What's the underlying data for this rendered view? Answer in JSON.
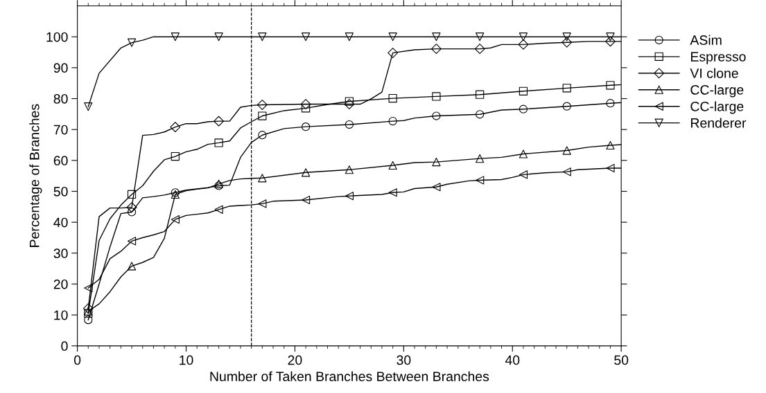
{
  "chart_data": {
    "type": "line",
    "xlabel": "Number of Taken Branches Between Branches",
    "ylabel": "Percentage of Branches",
    "xlim": [
      0,
      50
    ],
    "xticks": [
      0,
      10,
      20,
      30,
      40,
      50
    ],
    "ylim": [
      0,
      110
    ],
    "yticks": [
      0,
      10,
      20,
      30,
      40,
      50,
      60,
      70,
      80,
      90,
      100
    ],
    "grid": false,
    "legend": "top right",
    "line_style": "solid",
    "ref_lines": [
      {
        "axis": "x",
        "value": 16,
        "line_style": "dashed",
        "color": "#000000"
      }
    ],
    "series": [
      {
        "name": "ASim",
        "color": "#000000",
        "x": [
          1,
          2,
          3,
          4,
          5,
          6,
          7,
          8,
          9,
          10,
          11,
          12,
          13,
          14,
          15,
          16,
          17,
          19,
          21,
          25,
          29,
          30,
          31,
          33,
          37,
          39,
          41,
          45,
          49,
          50
        ],
        "values": [
          8.4,
          20,
          32,
          42.8,
          43.3,
          47.9,
          48.3,
          48.8,
          49.6,
          50.4,
          50.8,
          51.2,
          51.8,
          52,
          61,
          65.8,
          68.2,
          70.3,
          70.9,
          71.6,
          72.7,
          72.9,
          73.7,
          74.4,
          74.9,
          76.3,
          76.6,
          77.5,
          78.5,
          78.7
        ]
      },
      {
        "type": "scatter",
        "marker": "circle",
        "color": "#000000",
        "x": [
          1,
          5,
          9,
          13,
          17,
          21,
          25,
          29,
          33,
          37,
          41,
          45,
          49
        ],
        "values": [
          8.4,
          43.3,
          49.6,
          51.8,
          68.2,
          70.9,
          71.6,
          72.7,
          74.4,
          74.9,
          76.6,
          77.5,
          78.5
        ]
      },
      {
        "name": "Espresso",
        "color": "#000000",
        "x": [
          1,
          2,
          3,
          4,
          5,
          6,
          7,
          8,
          9,
          10,
          11,
          12,
          13,
          14,
          15,
          16,
          17,
          19,
          21,
          23,
          25,
          29,
          33,
          37,
          41,
          45,
          49,
          50
        ],
        "values": [
          10.5,
          34.1,
          41.1,
          45.5,
          49,
          51.8,
          56.5,
          60.2,
          61.3,
          62.8,
          63.6,
          65.2,
          65.7,
          66.3,
          70.5,
          72.5,
          74.4,
          76.1,
          76.9,
          78.1,
          79.1,
          80.1,
          80.7,
          81.3,
          82.4,
          83.4,
          84.3,
          84.5
        ]
      },
      {
        "type": "scatter",
        "marker": "square",
        "color": "#000000",
        "x": [
          1,
          5,
          9,
          13,
          17,
          21,
          25,
          29,
          33,
          37,
          41,
          45,
          49
        ],
        "values": [
          10.5,
          49,
          61.3,
          65.7,
          74.4,
          76.9,
          79.1,
          80.1,
          80.7,
          81.3,
          82.4,
          83.4,
          84.3
        ]
      },
      {
        "name": "VI clone",
        "color": "#000000",
        "x": [
          1,
          2,
          3,
          4,
          5,
          6,
          7,
          8,
          9,
          10,
          11,
          12,
          13,
          14,
          15,
          16,
          17,
          21,
          25,
          26,
          27,
          28,
          29,
          31,
          33,
          37,
          38,
          39,
          41,
          43,
          45,
          47,
          49,
          50
        ],
        "values": [
          12.1,
          41.8,
          44.6,
          44.6,
          44.8,
          68.1,
          68.4,
          69.2,
          70.8,
          71.9,
          71.9,
          72.5,
          72.7,
          72.7,
          77.2,
          77.8,
          78,
          78.2,
          78.2,
          78.2,
          79.9,
          82.1,
          94.8,
          95.8,
          96.1,
          96.1,
          96.4,
          97.5,
          97.5,
          97.9,
          98.2,
          98.5,
          98.5,
          98.5
        ]
      },
      {
        "type": "scatter",
        "marker": "diamond",
        "color": "#000000",
        "x": [
          1,
          5,
          9,
          13,
          17,
          21,
          25,
          29,
          33,
          37,
          41,
          45,
          49
        ],
        "values": [
          12.1,
          44.8,
          70.8,
          72.7,
          78,
          78.2,
          78.2,
          94.8,
          96.1,
          96.1,
          97.5,
          98.2,
          98.5
        ]
      },
      {
        "name": "CC-large",
        "color": "#000000",
        "x": [
          1,
          2,
          3,
          4,
          5,
          6,
          7,
          8,
          9,
          10,
          11,
          12,
          13,
          14,
          15,
          16,
          17,
          21,
          25,
          29,
          31,
          33,
          37,
          39,
          41,
          45,
          47,
          49,
          50
        ],
        "values": [
          11.2,
          13.6,
          17.5,
          22.3,
          25.8,
          27,
          28.6,
          34.8,
          49,
          50.2,
          50.7,
          51.1,
          52.4,
          53.5,
          54,
          54.2,
          54.3,
          56.1,
          57,
          58.4,
          59.3,
          59.5,
          60.6,
          61,
          62.1,
          63.2,
          64.3,
          64.9,
          65.1
        ]
      },
      {
        "type": "scatter",
        "marker": "triangle",
        "color": "#000000",
        "x": [
          1,
          5,
          9,
          13,
          17,
          21,
          25,
          29,
          33,
          37,
          41,
          45,
          49
        ],
        "values": [
          11.2,
          25.8,
          49,
          52.4,
          54.3,
          56.1,
          57,
          58.4,
          59.5,
          60.6,
          62.1,
          63.2,
          64.9
        ]
      },
      {
        "name": "CC-large",
        "color": "#000000",
        "x": [
          1,
          2,
          3,
          4,
          5,
          6,
          7,
          8,
          9,
          10,
          11,
          12,
          13,
          14,
          15,
          16,
          17,
          18,
          21,
          24,
          25,
          28,
          29,
          30,
          31,
          33,
          34,
          36,
          37,
          39,
          40,
          41,
          43,
          45,
          46,
          49,
          50
        ],
        "values": [
          18.7,
          21.5,
          28.2,
          30.6,
          33.9,
          35,
          35.9,
          37,
          40.9,
          42.2,
          42.6,
          43,
          44.1,
          45.2,
          45.4,
          45.6,
          46,
          46.8,
          47.2,
          48.3,
          48.5,
          49,
          49.6,
          49.8,
          50.9,
          51.4,
          52.3,
          53.4,
          53.6,
          53.8,
          54.5,
          55.4,
          56,
          56.3,
          57,
          57.5,
          57.5
        ]
      },
      {
        "type": "scatter",
        "marker": "triangle-left",
        "color": "#000000",
        "x": [
          1,
          5,
          9,
          13,
          17,
          21,
          25,
          29,
          33,
          37,
          41,
          45,
          49
        ],
        "values": [
          18.7,
          33.9,
          40.9,
          44.1,
          46,
          47.2,
          48.5,
          49.6,
          51.4,
          53.6,
          55.4,
          56.3,
          57.5
        ]
      },
      {
        "name": "Renderer",
        "color": "#000000",
        "x": [
          1,
          2,
          4,
          5,
          6,
          7,
          9,
          13,
          17,
          21,
          25,
          29,
          33,
          37,
          41,
          45,
          49,
          50
        ],
        "values": [
          77.4,
          88.2,
          96.4,
          98.1,
          98.9,
          100,
          100,
          100,
          100,
          100,
          100,
          100,
          100,
          100,
          100,
          100,
          100,
          100
        ]
      },
      {
        "type": "scatter",
        "marker": "triangle-down",
        "color": "#000000",
        "x": [
          1,
          5,
          9,
          13,
          17,
          21,
          25,
          29,
          33,
          37,
          41,
          45,
          49
        ],
        "values": [
          77.4,
          98.1,
          100,
          100,
          100,
          100,
          100,
          100,
          100,
          100,
          100,
          100,
          100
        ]
      }
    ]
  }
}
